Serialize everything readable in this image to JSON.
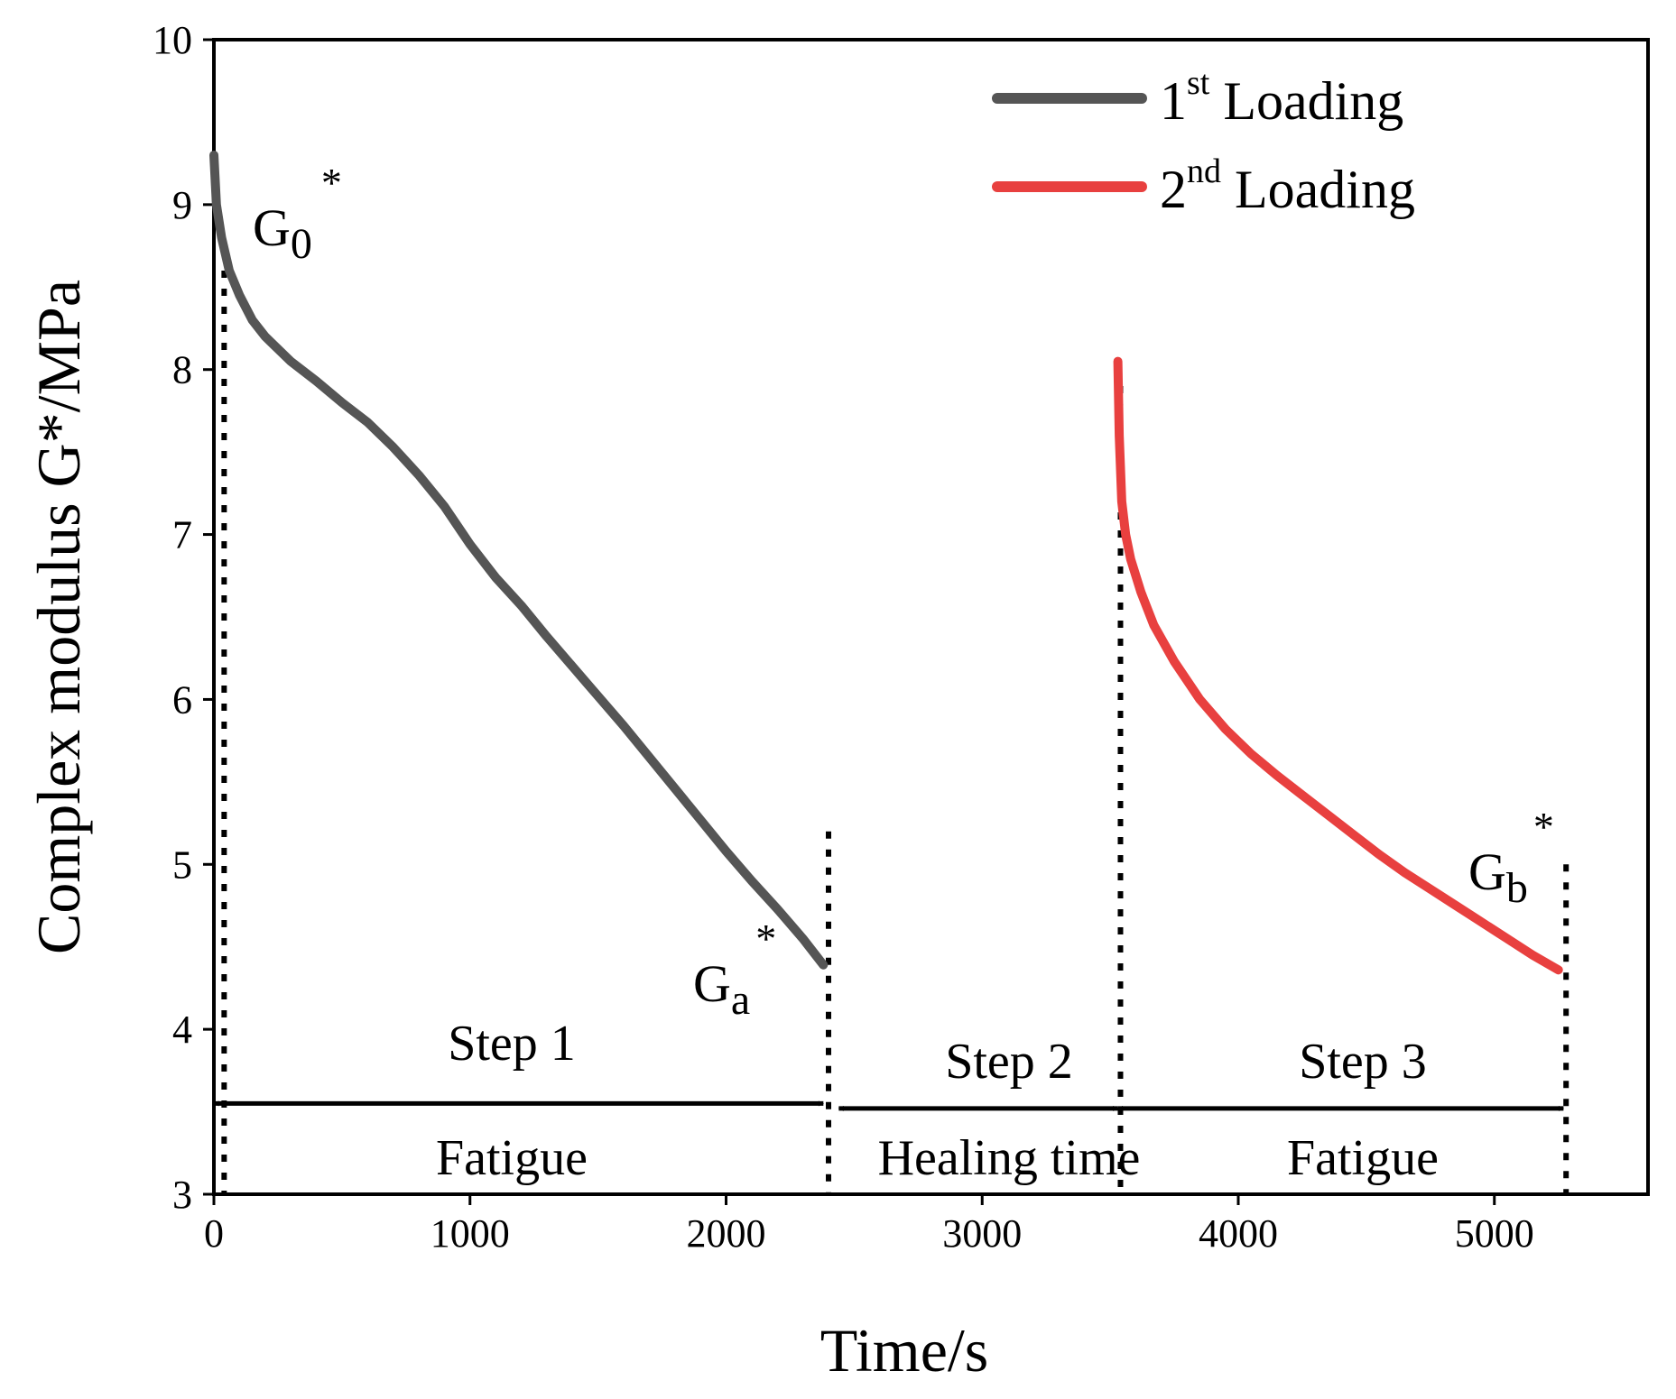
{
  "chart_data": {
    "type": "line",
    "xlabel": "Time/s",
    "ylabel": "Complex modulus G*/MPa",
    "xlim": [
      0,
      5600
    ],
    "ylim": [
      3,
      10
    ],
    "x_ticks": [
      "0",
      "1000",
      "2000",
      "3000",
      "4000",
      "5000"
    ],
    "y_ticks": [
      "3",
      "4",
      "5",
      "6",
      "7",
      "8",
      "9",
      "10"
    ],
    "series": [
      {
        "name": "1st Loading",
        "legend_base": "1",
        "legend_sup": "st",
        "legend_rest": " Loading",
        "color": "#555555",
        "x": [
          0,
          10,
          30,
          60,
          100,
          150,
          200,
          300,
          400,
          500,
          600,
          700,
          800,
          900,
          1000,
          1100,
          1200,
          1300,
          1400,
          1500,
          1600,
          1700,
          1800,
          1900,
          2000,
          2100,
          2200,
          2300,
          2380
        ],
        "y": [
          9.3,
          9.0,
          8.8,
          8.6,
          8.45,
          8.3,
          8.2,
          8.05,
          7.93,
          7.8,
          7.68,
          7.53,
          7.36,
          7.17,
          6.94,
          6.74,
          6.57,
          6.38,
          6.2,
          6.02,
          5.84,
          5.65,
          5.46,
          5.27,
          5.08,
          4.9,
          4.73,
          4.55,
          4.39
        ]
      },
      {
        "name": "2nd Loading",
        "legend_base": "2",
        "legend_sup": "nd",
        "legend_rest": " Loading",
        "color": "#e8403f",
        "x": [
          3530,
          3535,
          3545,
          3560,
          3580,
          3620,
          3670,
          3750,
          3850,
          3950,
          4050,
          4150,
          4250,
          4350,
          4450,
          4550,
          4650,
          4750,
          4850,
          4950,
          5050,
          5150,
          5250
        ],
        "y": [
          8.05,
          7.6,
          7.2,
          7.0,
          6.85,
          6.65,
          6.45,
          6.23,
          6.0,
          5.82,
          5.67,
          5.54,
          5.42,
          5.3,
          5.18,
          5.06,
          4.95,
          4.85,
          4.75,
          4.65,
          4.55,
          4.45,
          4.36
        ]
      }
    ],
    "annotations": {
      "g0": {
        "base": "G",
        "sub": "0",
        "sup": "*"
      },
      "ga": {
        "base": "G",
        "sub": "a",
        "sup": "*"
      },
      "gb": {
        "base": "G",
        "sub": "b",
        "sup": "*"
      }
    },
    "steps": [
      {
        "label": "Step 1",
        "phase": "Fatigue",
        "x_start": 0,
        "x_end": 2380
      },
      {
        "label": "Step 2",
        "phase": "Healing time",
        "x_start": 2440,
        "x_end": 3530
      },
      {
        "label": "Step 3",
        "phase": "Fatigue",
        "x_start": 3530,
        "x_end": 5270
      }
    ],
    "markers_x": [
      40,
      2400,
      3540,
      5280
    ]
  }
}
